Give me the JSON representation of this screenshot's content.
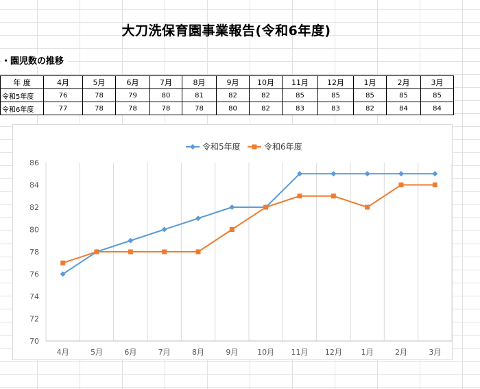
{
  "title": "大刀洗保育園事業報告(令和6年度)",
  "section_label": "・園児数の推移",
  "table": {
    "corner": "年 度",
    "months": [
      "4月",
      "5月",
      "6月",
      "7月",
      "8月",
      "9月",
      "10月",
      "11月",
      "12月",
      "1月",
      "2月",
      "3月"
    ],
    "rows": [
      {
        "label": "令和5年度",
        "values": [
          76,
          78,
          79,
          80,
          81,
          82,
          82,
          85,
          85,
          85,
          85,
          85
        ]
      },
      {
        "label": "令和6年度",
        "values": [
          77,
          78,
          78,
          78,
          78,
          80,
          82,
          83,
          83,
          82,
          84,
          84
        ]
      }
    ]
  },
  "chart_data": {
    "type": "line",
    "categories": [
      "4月",
      "5月",
      "6月",
      "7月",
      "8月",
      "9月",
      "10月",
      "11月",
      "12月",
      "1月",
      "2月",
      "3月"
    ],
    "series": [
      {
        "name": "令和5年度",
        "values": [
          76,
          78,
          79,
          80,
          81,
          82,
          82,
          85,
          85,
          85,
          85,
          85
        ],
        "color": "#5b9bd5",
        "marker": "diamond"
      },
      {
        "name": "令和6年度",
        "values": [
          77,
          78,
          78,
          78,
          78,
          80,
          82,
          83,
          83,
          82,
          84,
          84
        ],
        "color": "#ed7d31",
        "marker": "square"
      }
    ],
    "ylim": [
      70,
      86
    ],
    "yticks": [
      70,
      72,
      74,
      76,
      78,
      80,
      82,
      84,
      86
    ],
    "grid": "vertical",
    "legend": "top"
  }
}
